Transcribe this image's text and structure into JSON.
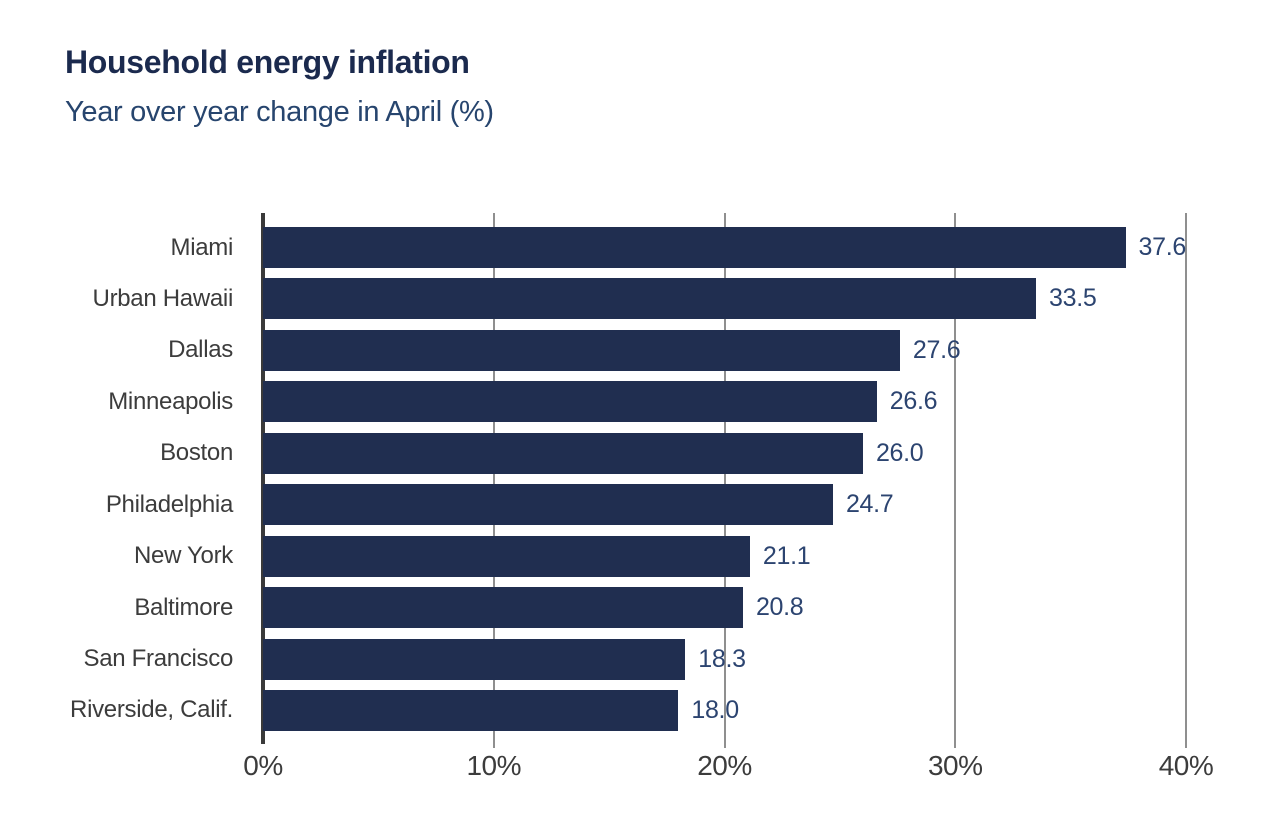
{
  "title": "Household energy inflation",
  "subtitle": "Year over year change in April (%)",
  "colors": {
    "bar": "#202e50",
    "title": "#1b2a4e",
    "subtitle": "#27456e",
    "value_label": "#2c4470",
    "axis_label": "#3c3c3c",
    "gridline": "#8f8f8f",
    "axis_line": "#3a3a3a",
    "background": "#ffffff"
  },
  "chart_data": {
    "type": "bar",
    "orientation": "horizontal",
    "title": "Household energy inflation",
    "subtitle": "Year over year change in April (%)",
    "xlabel": "",
    "ylabel": "",
    "xlim": [
      0,
      40
    ],
    "x_ticks": [
      {
        "value": 0,
        "label": "0%"
      },
      {
        "value": 10,
        "label": "10%"
      },
      {
        "value": 20,
        "label": "20%"
      },
      {
        "value": 30,
        "label": "30%"
      },
      {
        "value": 40,
        "label": "40%"
      }
    ],
    "grid": "vertical",
    "legend": "none",
    "value_labels_position": "outside-end",
    "categories": [
      "Miami",
      "Urban Hawaii",
      "Dallas",
      "Minneapolis",
      "Boston",
      "Philadelphia",
      "New York",
      "Baltimore",
      "San Francisco",
      "Riverside, Calif."
    ],
    "values": [
      37.6,
      33.5,
      27.6,
      26.6,
      26.0,
      24.7,
      21.1,
      20.8,
      18.3,
      18.0
    ],
    "value_labels": [
      "37.6",
      "33.5",
      "27.6",
      "26.6",
      "26.0",
      "24.7",
      "21.1",
      "20.8",
      "18.3",
      "18.0"
    ]
  }
}
